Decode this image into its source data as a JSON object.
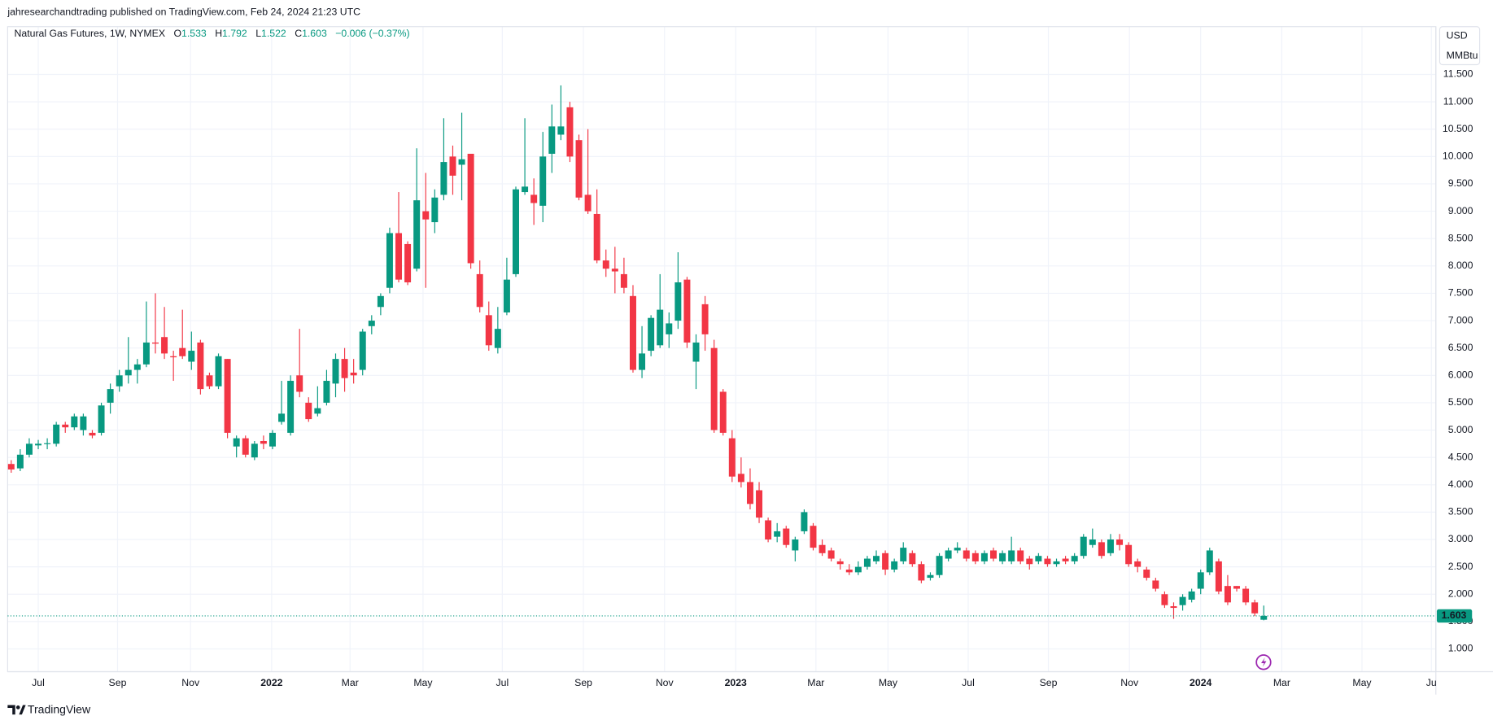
{
  "publisher": "jahresearchandtrading published on TradingView.com, Feb 24, 2024 21:23 UTC",
  "footer": "TradingView",
  "chart_data": {
    "type": "candlestick",
    "title": "Natural Gas Futures, 1W, NYMEX",
    "ohlc_labels": [
      "O",
      "H",
      "L",
      "C"
    ],
    "change": "−0.006 (−0.37%)",
    "y_unit": [
      "USD",
      "MMBtu"
    ],
    "up_color": "#089981",
    "down_color": "#f23645",
    "grid": true,
    "open": [
      4.38,
      4.3,
      4.55,
      4.72,
      4.75,
      4.75,
      5.1,
      5.05,
      5.0,
      4.95,
      4.95,
      5.5,
      5.8,
      6.0,
      6.1,
      6.2,
      6.6,
      6.7,
      6.35,
      6.5,
      6.25,
      6.6,
      6.0,
      5.8,
      6.3,
      4.7,
      4.85,
      4.5,
      4.8,
      4.7,
      5.15,
      4.95,
      6.0,
      5.5,
      5.3,
      5.5,
      5.85,
      6.3,
      6.05,
      6.1,
      6.9,
      7.25,
      7.6,
      8.6,
      8.4,
      7.95,
      9.0,
      8.8,
      9.3,
      10.0,
      9.85,
      10.05,
      7.85,
      7.1,
      6.5,
      7.15,
      7.85,
      9.35,
      9.3,
      9.1,
      10.05,
      10.4,
      10.9,
      10.3,
      9.3,
      8.95,
      8.1,
      7.95,
      7.85,
      7.45,
      6.1,
      6.45,
      6.55,
      6.75,
      7.0,
      7.75,
      6.25,
      7.3,
      6.5,
      5.7,
      4.85,
      4.2,
      4.05,
      3.9,
      3.35,
      3.05,
      3.2,
      2.8,
      3.15,
      3.25,
      2.9,
      2.8,
      2.6,
      2.45,
      2.4,
      2.5,
      2.6,
      2.75,
      2.45,
      2.6,
      2.75,
      2.55,
      2.3,
      2.35,
      2.65,
      2.8,
      2.8,
      2.75,
      2.6,
      2.8,
      2.6,
      2.6,
      2.8,
      2.65,
      2.6,
      2.65,
      2.55,
      2.65,
      2.6,
      2.7,
      2.9,
      2.95,
      2.75,
      3.0,
      2.9,
      2.6,
      2.45,
      2.25,
      2.0,
      1.78,
      1.8,
      1.9,
      2.1,
      2.4,
      2.6,
      2.15,
      2.15,
      2.1,
      1.85,
      1.533
    ],
    "high": [
      4.45,
      4.65,
      4.85,
      4.82,
      4.85,
      5.15,
      5.15,
      5.3,
      5.3,
      5.0,
      5.5,
      5.85,
      6.1,
      6.7,
      6.3,
      7.35,
      7.5,
      7.25,
      6.45,
      7.2,
      6.8,
      6.65,
      6.05,
      6.4,
      6.3,
      4.9,
      4.9,
      4.8,
      4.9,
      5.0,
      5.9,
      6.0,
      6.85,
      5.6,
      5.8,
      6.1,
      6.4,
      6.5,
      6.3,
      6.85,
      7.1,
      7.5,
      8.7,
      9.35,
      8.45,
      10.15,
      9.7,
      9.4,
      10.7,
      10.2,
      10.8,
      10.05,
      8.1,
      7.35,
      7.25,
      8.15,
      9.45,
      10.7,
      9.6,
      10.45,
      10.95,
      11.3,
      11.0,
      10.4,
      10.5,
      9.4,
      8.3,
      8.35,
      8.15,
      7.65,
      6.9,
      7.1,
      7.85,
      7.15,
      8.25,
      7.8,
      6.75,
      7.45,
      6.65,
      5.75,
      5.0,
      4.5,
      4.3,
      4.05,
      3.4,
      3.3,
      3.25,
      3.05,
      3.55,
      3.3,
      3.0,
      2.85,
      2.65,
      2.55,
      2.6,
      2.7,
      2.8,
      2.8,
      2.65,
      2.95,
      2.8,
      2.6,
      2.4,
      2.75,
      2.85,
      2.95,
      2.85,
      2.8,
      2.8,
      2.85,
      2.8,
      3.05,
      2.85,
      2.7,
      2.75,
      2.7,
      2.65,
      2.7,
      2.75,
      3.1,
      3.2,
      3.0,
      3.1,
      3.1,
      2.95,
      2.65,
      2.5,
      2.3,
      2.05,
      1.85,
      2.0,
      2.1,
      2.45,
      2.85,
      2.65,
      2.35,
      2.15,
      2.15,
      1.9,
      1.792
    ],
    "low": [
      4.22,
      4.25,
      4.5,
      4.65,
      4.65,
      4.7,
      4.95,
      5.0,
      4.9,
      4.85,
      4.9,
      5.3,
      5.7,
      5.85,
      5.85,
      6.15,
      6.4,
      6.3,
      5.9,
      6.3,
      6.1,
      5.65,
      5.75,
      5.75,
      4.85,
      4.5,
      4.5,
      4.45,
      4.65,
      4.65,
      5.1,
      4.9,
      5.6,
      5.15,
      5.25,
      5.45,
      5.6,
      5.7,
      5.85,
      6.0,
      6.75,
      7.1,
      7.5,
      7.7,
      7.65,
      7.9,
      7.6,
      8.6,
      9.2,
      9.3,
      9.2,
      7.95,
      7.15,
      6.45,
      6.4,
      7.1,
      7.8,
      9.3,
      8.75,
      8.8,
      9.7,
      10.3,
      9.9,
      9.2,
      8.95,
      8.05,
      7.8,
      7.5,
      7.5,
      6.05,
      5.95,
      6.35,
      6.5,
      6.5,
      6.85,
      6.5,
      5.75,
      6.45,
      4.95,
      4.9,
      4.05,
      3.95,
      3.55,
      3.3,
      2.95,
      2.95,
      2.85,
      2.6,
      3.1,
      2.8,
      2.7,
      2.6,
      2.45,
      2.35,
      2.35,
      2.45,
      2.55,
      2.35,
      2.4,
      2.55,
      2.5,
      2.2,
      2.25,
      2.3,
      2.6,
      2.75,
      2.6,
      2.55,
      2.55,
      2.6,
      2.55,
      2.55,
      2.55,
      2.45,
      2.55,
      2.5,
      2.5,
      2.55,
      2.55,
      2.65,
      2.85,
      2.65,
      2.7,
      2.8,
      2.5,
      2.4,
      2.25,
      2.05,
      1.75,
      1.55,
      1.7,
      1.85,
      2.0,
      2.35,
      2.0,
      1.8,
      2.05,
      1.8,
      1.6,
      1.522
    ],
    "close": [
      4.28,
      4.55,
      4.75,
      4.75,
      4.76,
      5.1,
      5.05,
      5.25,
      5.25,
      4.9,
      5.45,
      5.75,
      6.0,
      6.1,
      6.2,
      6.6,
      6.58,
      6.4,
      6.33,
      6.35,
      6.45,
      5.75,
      5.8,
      6.35,
      4.95,
      4.85,
      4.55,
      4.75,
      4.75,
      4.95,
      5.3,
      5.9,
      5.7,
      5.2,
      5.4,
      5.9,
      6.3,
      5.95,
      6.0,
      6.8,
      7.0,
      7.45,
      8.6,
      7.75,
      7.7,
      9.2,
      8.85,
      9.25,
      9.9,
      9.65,
      9.95,
      8.05,
      7.25,
      6.55,
      6.85,
      7.75,
      9.4,
      9.45,
      9.15,
      10.0,
      10.55,
      10.55,
      10.0,
      9.25,
      9.0,
      8.1,
      7.95,
      7.9,
      7.6,
      6.1,
      6.4,
      7.05,
      7.2,
      6.95,
      7.7,
      6.6,
      6.6,
      6.75,
      5.0,
      4.95,
      4.15,
      4.05,
      3.65,
      3.4,
      3.0,
      3.15,
      2.9,
      3.0,
      3.5,
      2.85,
      2.75,
      2.65,
      2.55,
      2.4,
      2.5,
      2.65,
      2.7,
      2.45,
      2.6,
      2.85,
      2.55,
      2.25,
      2.35,
      2.7,
      2.8,
      2.85,
      2.65,
      2.6,
      2.75,
      2.65,
      2.75,
      2.8,
      2.6,
      2.55,
      2.7,
      2.55,
      2.6,
      2.6,
      2.7,
      3.05,
      3.0,
      2.7,
      3.0,
      2.9,
      2.55,
      2.5,
      2.3,
      2.1,
      1.8,
      1.75,
      1.95,
      2.05,
      2.4,
      2.8,
      2.05,
      1.85,
      2.1,
      1.85,
      1.65,
      1.603
    ],
    "xlim": [
      -0.4,
      158.1
    ],
    "xticks": [
      {
        "value": 3.0,
        "label": "Jul"
      },
      {
        "value": 11.8,
        "label": "Sep"
      },
      {
        "value": 19.9,
        "label": "Nov"
      },
      {
        "value": 28.9,
        "label": "2022"
      },
      {
        "value": 37.6,
        "label": "Mar"
      },
      {
        "value": 45.7,
        "label": "May"
      },
      {
        "value": 54.5,
        "label": "Jul"
      },
      {
        "value": 63.5,
        "label": "Sep"
      },
      {
        "value": 72.5,
        "label": "Nov"
      },
      {
        "value": 80.4,
        "label": "2023"
      },
      {
        "value": 89.3,
        "label": "Mar"
      },
      {
        "value": 97.3,
        "label": "May"
      },
      {
        "value": 106.2,
        "label": "Jul"
      },
      {
        "value": 115.1,
        "label": "Sep"
      },
      {
        "value": 124.1,
        "label": "Nov"
      },
      {
        "value": 132.0,
        "label": "2024"
      },
      {
        "value": 141.0,
        "label": "Mar"
      },
      {
        "value": 149.9,
        "label": "May"
      },
      {
        "value": 157.6,
        "label": "Ju"
      }
    ],
    "ylim": [
      0.583,
      12.374
    ],
    "yticks": [
      {
        "value": 1.0,
        "label": "1.000"
      },
      {
        "value": 1.5,
        "label": "1.500"
      },
      {
        "value": 2.0,
        "label": "2.000"
      },
      {
        "value": 2.5,
        "label": "2.500"
      },
      {
        "value": 3.0,
        "label": "3.000"
      },
      {
        "value": 3.5,
        "label": "3.500"
      },
      {
        "value": 4.0,
        "label": "4.000"
      },
      {
        "value": 4.5,
        "label": "4.500"
      },
      {
        "value": 5.0,
        "label": "5.000"
      },
      {
        "value": 5.5,
        "label": "5.500"
      },
      {
        "value": 6.0,
        "label": "6.000"
      },
      {
        "value": 6.5,
        "label": "6.500"
      },
      {
        "value": 7.0,
        "label": "7.000"
      },
      {
        "value": 7.5,
        "label": "7.500"
      },
      {
        "value": 8.0,
        "label": "8.000"
      },
      {
        "value": 8.5,
        "label": "8.500"
      },
      {
        "value": 9.0,
        "label": "9.000"
      },
      {
        "value": 9.5,
        "label": "9.500"
      },
      {
        "value": 10.0,
        "label": "10.000"
      },
      {
        "value": 10.5,
        "label": "10.500"
      },
      {
        "value": 11.0,
        "label": "11.000"
      },
      {
        "value": 11.5,
        "label": "11.500"
      }
    ]
  }
}
